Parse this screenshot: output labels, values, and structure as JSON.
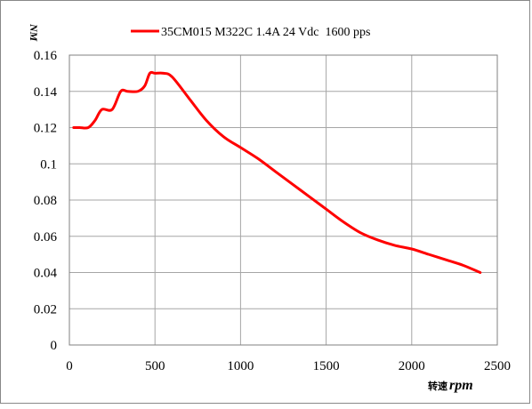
{
  "chart_data": {
    "type": "line",
    "ylabel": "NM",
    "xlabel_cjk": "转速",
    "xlabel_unit": "rpm",
    "xlim": [
      0,
      2500
    ],
    "ylim": [
      0,
      0.16
    ],
    "xticks": [
      "0",
      "500",
      "1000",
      "1500",
      "2000",
      "2500"
    ],
    "yticks": [
      "0",
      "0.02",
      "0.04",
      "0.06",
      "0.08",
      "0.1",
      "0.12",
      "0.14",
      "0.16"
    ],
    "grid": true,
    "legend_position": "top",
    "series": [
      {
        "name": "35CM015 M322C 1.4A 24 Vdc  1600 pps",
        "color": "#ff0000",
        "x": [
          25,
          60,
          110,
          150,
          190,
          250,
          300,
          340,
          400,
          440,
          470,
          500,
          550,
          600,
          700,
          800,
          900,
          1000,
          1100,
          1200,
          1300,
          1400,
          1500,
          1600,
          1700,
          1800,
          1900,
          2000,
          2100,
          2200,
          2300,
          2400
        ],
        "y": [
          0.12,
          0.12,
          0.12,
          0.124,
          0.13,
          0.13,
          0.14,
          0.14,
          0.14,
          0.143,
          0.15,
          0.15,
          0.15,
          0.148,
          0.136,
          0.124,
          0.115,
          0.109,
          0.103,
          0.096,
          0.089,
          0.082,
          0.075,
          0.068,
          0.062,
          0.058,
          0.055,
          0.053,
          0.05,
          0.047,
          0.044,
          0.04
        ]
      }
    ]
  }
}
